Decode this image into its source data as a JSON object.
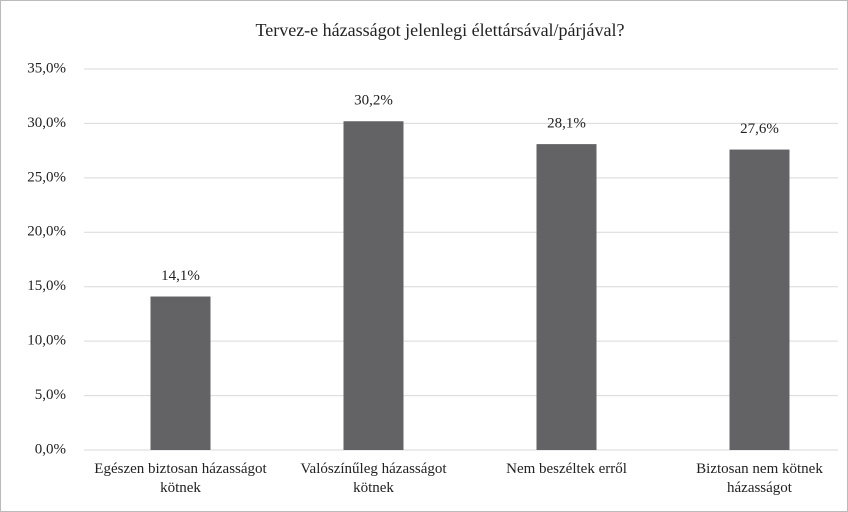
{
  "chart_data": {
    "type": "bar",
    "title": "Tervez-e házasságot jelenlegi élettársával/párjával?",
    "categories": [
      "Egészen biztosan házasságot kötnek",
      "Valószínűleg házasságot kötnek",
      "Nem beszéltek erről",
      "Biztosan nem kötnek házasságot"
    ],
    "values": [
      14.1,
      30.2,
      28.1,
      27.6
    ],
    "value_labels": [
      "14,1%",
      "30,2%",
      "28,1%",
      "27,6%"
    ],
    "color": "#636366",
    "ylim": [
      0,
      35
    ],
    "yticks": [
      {
        "value": 0,
        "label": "0,0%"
      },
      {
        "value": 5,
        "label": "5,0%"
      },
      {
        "value": 10,
        "label": "10,0%"
      },
      {
        "value": 15,
        "label": "15,0%"
      },
      {
        "value": 20,
        "label": "20,0%"
      },
      {
        "value": 25,
        "label": "25,0%"
      },
      {
        "value": 30,
        "label": "30,0%"
      },
      {
        "value": 35,
        "label": "35,0%"
      }
    ],
    "grid": true
  }
}
